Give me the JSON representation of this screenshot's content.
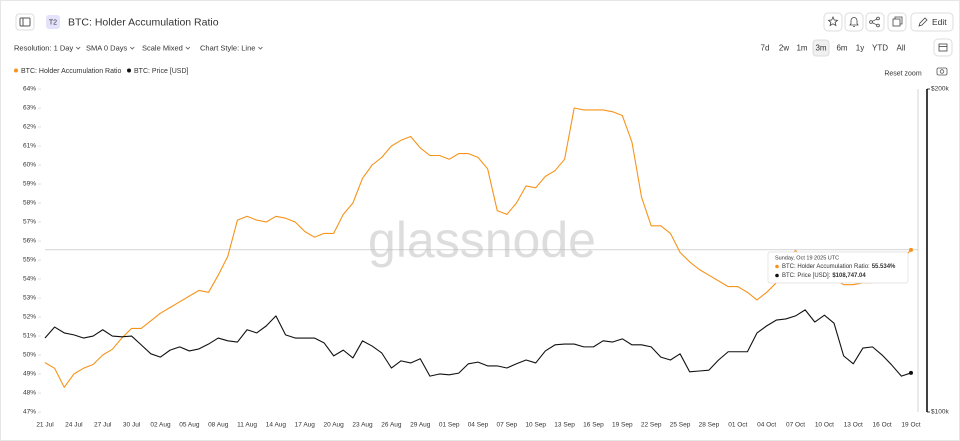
{
  "header": {
    "badge": "T2",
    "title": "BTC: Holder Accumulation Ratio",
    "edit": "Edit"
  },
  "toolbar": {
    "options": [
      "Resolution: 1 Day",
      "SMA 0 Days",
      "Scale Mixed",
      "Chart Style: Line"
    ],
    "ranges": [
      "7d",
      "2w",
      "1m",
      "3m",
      "6m",
      "1y",
      "YTD",
      "All"
    ],
    "active_range": "3m"
  },
  "reset_zoom": "Reset zoom",
  "watermark": "glassnode",
  "tooltip": {
    "date": "Sunday, Oct 19 2025 UTC",
    "rows": [
      {
        "label": "BTC: Holder Accumulation Ratio:",
        "value": "55.534%"
      },
      {
        "label": "BTC: Price [USD]:",
        "value": "$108,747.04"
      }
    ]
  },
  "chart_data": {
    "type": "line",
    "categories": [
      "21 Jul",
      null,
      null,
      "24 Jul",
      null,
      null,
      "27 Jul",
      null,
      null,
      "30 Jul",
      null,
      null,
      "02 Aug",
      null,
      null,
      "05 Aug",
      null,
      null,
      "08 Aug",
      null,
      null,
      "11 Aug",
      null,
      null,
      "14 Aug",
      null,
      null,
      "17 Aug",
      null,
      null,
      "20 Aug",
      null,
      null,
      "23 Aug",
      null,
      null,
      "26 Aug",
      null,
      null,
      "29 Aug",
      null,
      null,
      "01 Sep",
      null,
      null,
      "04 Sep",
      null,
      null,
      "07 Sep",
      null,
      null,
      "10 Sep",
      null,
      null,
      "13 Sep",
      null,
      null,
      "16 Sep",
      null,
      null,
      "19 Sep",
      null,
      null,
      "22 Sep",
      null,
      null,
      "25 Sep",
      null,
      null,
      "28 Sep",
      null,
      null,
      "01 Oct",
      null,
      null,
      "04 Oct",
      null,
      null,
      "07 Oct",
      null,
      null,
      "10 Oct",
      null,
      null,
      "13 Oct",
      null,
      null,
      "16 Oct",
      null,
      null,
      "19 Oct"
    ],
    "series": [
      {
        "name": "BTC: Holder Accumulation Ratio",
        "color": "#f7931a",
        "values": [
          49.6,
          49.3,
          48.3,
          49.0,
          49.3,
          49.5,
          50.0,
          50.3,
          50.9,
          51.4,
          51.4,
          51.8,
          52.2,
          52.5,
          52.8,
          53.1,
          53.4,
          53.3,
          54.2,
          55.2,
          57.1,
          57.3,
          57.1,
          57.0,
          57.3,
          57.2,
          57.0,
          56.5,
          56.2,
          56.4,
          56.4,
          57.4,
          58.0,
          59.3,
          60.0,
          60.4,
          61.0,
          61.3,
          61.5,
          60.9,
          60.5,
          60.5,
          60.3,
          60.6,
          60.6,
          60.4,
          59.8,
          57.6,
          57.4,
          58.0,
          58.9,
          58.8,
          59.4,
          59.7,
          60.3,
          63.0,
          62.9,
          62.9,
          62.9,
          62.8,
          62.6,
          61.2,
          58.3,
          56.8,
          56.8,
          56.4,
          55.4,
          54.9,
          54.5,
          54.2,
          53.9,
          53.6,
          53.6,
          53.3,
          52.9,
          53.3,
          53.8,
          55.0,
          55.5,
          55.0,
          54.6,
          54.3,
          54.0,
          53.7,
          53.7,
          53.8,
          53.8,
          54.0,
          54.5,
          55.0,
          55.534
        ]
      },
      {
        "name": "BTC: Price [USD]",
        "color": "#111111",
        "axis": "y2",
        "values": [
          117200,
          120000,
          118500,
          118000,
          117200,
          117700,
          119300,
          117700,
          117500,
          117700,
          115500,
          113300,
          112500,
          114200,
          115000,
          114000,
          114500,
          115700,
          117200,
          116500,
          116200,
          119300,
          118500,
          120300,
          122900,
          118000,
          117200,
          117200,
          117200,
          116000,
          112800,
          114200,
          112300,
          116500,
          115200,
          113500,
          109900,
          111600,
          111100,
          112100,
          108000,
          108500,
          108300,
          108700,
          110900,
          111300,
          110400,
          110400,
          109900,
          110900,
          111800,
          111100,
          114000,
          115500,
          115700,
          115700,
          115000,
          115000,
          116500,
          116200,
          117000,
          115500,
          115500,
          115000,
          112500,
          111800,
          113300,
          109000,
          109200,
          109400,
          111800,
          113800,
          113800,
          113800,
          118500,
          120300,
          121800,
          122100,
          122900,
          124500,
          121300,
          123100,
          121000,
          112800,
          110900,
          114700,
          115000,
          113000,
          110600,
          108000,
          108747.04
        ]
      }
    ],
    "ylim": [
      47,
      64
    ],
    "yticks": [
      {
        "value": 47,
        "label": "47%"
      },
      {
        "value": 48,
        "label": "48%"
      },
      {
        "value": 49,
        "label": "49%"
      },
      {
        "value": 50,
        "label": "50%"
      },
      {
        "value": 51,
        "label": "51%"
      },
      {
        "value": 52,
        "label": "52%"
      },
      {
        "value": 53,
        "label": "53%"
      },
      {
        "value": 54,
        "label": "54%"
      },
      {
        "value": 55,
        "label": "55%"
      },
      {
        "value": 56,
        "label": "56%"
      },
      {
        "value": 57,
        "label": "57%"
      },
      {
        "value": 58,
        "label": "58%"
      },
      {
        "value": 59,
        "label": "59%"
      },
      {
        "value": 60,
        "label": "60%"
      },
      {
        "value": 61,
        "label": "61%"
      },
      {
        "value": 62,
        "label": "62%"
      },
      {
        "value": 63,
        "label": "63%"
      },
      {
        "value": 64,
        "label": "64%"
      }
    ],
    "y2lim": [
      100000,
      200000
    ],
    "y2ticks": [
      {
        "value": 100000,
        "label": "$100k"
      },
      {
        "value": 200000,
        "label": "$200k"
      }
    ],
    "y2scale": "log",
    "grid": false
  }
}
